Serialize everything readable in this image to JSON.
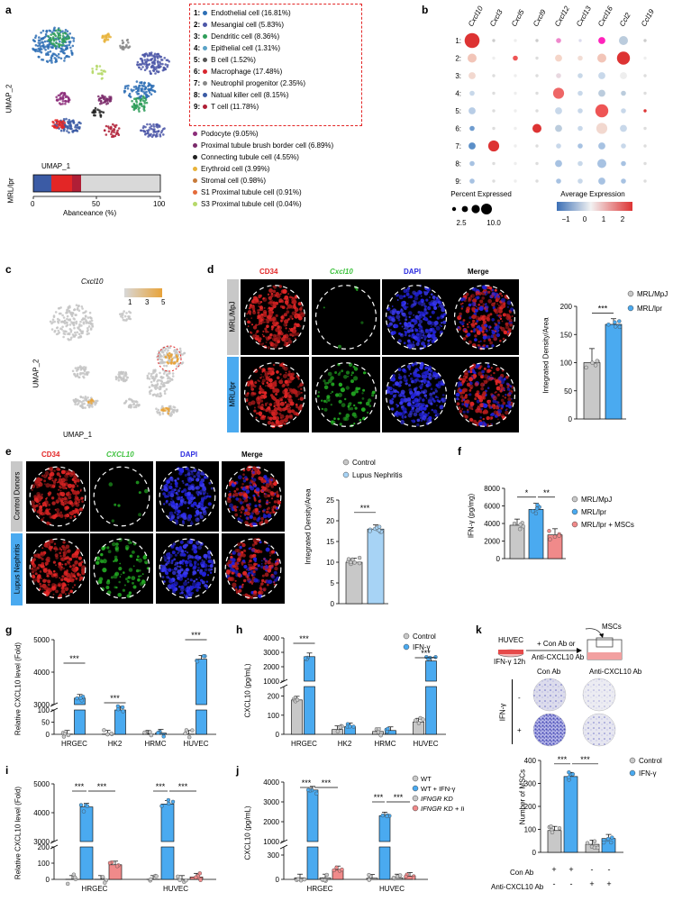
{
  "panels": {
    "a": {
      "letter": "a",
      "umap_xlabel": "UMAP_1",
      "umap_ylabel": "UMAP_2",
      "bar_ylabel": "MRL/lpr",
      "bar_xlabel": "Abanceance (%)",
      "bar_ticks": [
        "0",
        "50",
        "100"
      ],
      "boxed_legend": [
        {
          "num": "1:",
          "label": "Endothelial cell (16.81%)",
          "color": "#2e6fb5"
        },
        {
          "num": "2:",
          "label": "Mesangial cell (5.83%)",
          "color": "#4c57a8"
        },
        {
          "num": "3:",
          "label": "Dendritic cell (8.36%)",
          "color": "#2f9e5a"
        },
        {
          "num": "4:",
          "label": "Epithelial cell (1.31%)",
          "color": "#5aa3c7"
        },
        {
          "num": "5:",
          "label": "B cell (1.52%)",
          "color": "#555555"
        },
        {
          "num": "6:",
          "label": "Macrophage (17.48%)",
          "color": "#d8262f"
        },
        {
          "num": "7:",
          "label": "Neutrophil progenitor (2.35%)",
          "color": "#888888"
        },
        {
          "num": "8:",
          "label": "Natual killer cell (8.15%)",
          "color": "#3b5ba5"
        },
        {
          "num": "9:",
          "label": "T cell (11.78%)",
          "color": "#b01f36"
        }
      ],
      "other_legend": [
        {
          "label": "Podocyte (9.05%)",
          "color": "#8c2d7a"
        },
        {
          "label": "Proximal tubule brush border cell (6.89%)",
          "color": "#7b2b6b"
        },
        {
          "label": "Connecting tubule cell (4.55%)",
          "color": "#222222"
        },
        {
          "label": "Erythroid cell (3.99%)",
          "color": "#e8b33a"
        },
        {
          "label": "Stromal cell (0.98%)",
          "color": "#c77a3a"
        },
        {
          "label": "S1 Proximal tubule cell (0.91%)",
          "color": "#e46b3a"
        },
        {
          "label": "S3 Proximal tubule cell (0.04%)",
          "color": "#b6d96a"
        }
      ]
    },
    "b": {
      "letter": "b",
      "genes": [
        "Cxcl10",
        "Cxcl3",
        "Cxcl5",
        "Cxcl9",
        "Cxcl12",
        "Cxcl13",
        "Cxcl16",
        "Ccl2",
        "Ccl19"
      ],
      "rows": [
        "1:",
        "2:",
        "3:",
        "4:",
        "5:",
        "6:",
        "7:",
        "8:",
        "9:"
      ],
      "percent_title": "Percent Expressed",
      "percent_ticks": [
        "2.5",
        "10.0"
      ],
      "avg_title": "Average Expression",
      "avg_ticks": [
        "−1",
        "0",
        "1",
        "2"
      ]
    },
    "c": {
      "letter": "c",
      "title": "Cxcl10",
      "scale_ticks": [
        "1",
        "3",
        "5"
      ],
      "xlabel": "UMAP_1",
      "ylabel": "UMAP_2"
    },
    "d": {
      "letter": "d",
      "col_titles": [
        "CD34",
        "Cxcl10",
        "DAPI",
        "Merge"
      ],
      "row_labels": [
        "MRL/MpJ",
        "MRL/lpr"
      ],
      "ylabel": "Integrated Density/Area",
      "sig": "***",
      "legend": [
        "MRL/MpJ",
        "MRL/lpr"
      ]
    },
    "e": {
      "letter": "e",
      "col_titles": [
        "CD34",
        "CXCL10",
        "DAPI",
        "Merge"
      ],
      "row_labels": [
        "Control Donors",
        "Lupus Nephritis"
      ],
      "ylabel": "Integrated Density/Area",
      "sig": "***",
      "legend": [
        "Control",
        "Lupus Nephritis"
      ]
    },
    "f": {
      "letter": "f",
      "ylabel": "IFN-γ (pg/mg)",
      "yticks": [
        "0",
        "2000",
        "4000",
        "6000",
        "8000"
      ],
      "sig": [
        "*",
        "**"
      ],
      "legend": [
        "MRL/MpJ",
        "MRL/lpr",
        "MRL/lpr + MSCs"
      ]
    },
    "g": {
      "letter": "g",
      "ylabel": "Relative CXCL10 level (Fold)",
      "yticks_top": [
        "3000",
        "4000",
        "5000"
      ],
      "yticks_bottom": [
        "0",
        "50",
        "100"
      ],
      "categories": [
        "HRGEC",
        "HK2",
        "HRMC",
        "HUVEC"
      ],
      "sig": [
        "***",
        "***",
        "***"
      ]
    },
    "h": {
      "letter": "h",
      "ylabel": "CXCL10 (pg/mL)",
      "yticks_top": [
        "1000",
        "2000",
        "3000",
        "4000"
      ],
      "yticks_bottom": [
        "0",
        "100",
        "200"
      ],
      "categories": [
        "HRGEC",
        "HK2",
        "HRMC",
        "HUVEC"
      ],
      "sig": [
        "***",
        "***"
      ],
      "legend": [
        "Control",
        "IFN-γ"
      ]
    },
    "i": {
      "letter": "i",
      "ylabel": "Relative CXCL10 level (Fold)",
      "yticks_top": [
        "3000",
        "4000",
        "5000"
      ],
      "yticks_bottom": [
        "0",
        "100",
        "200"
      ],
      "categories": [
        "HRGEC",
        "HUVEC"
      ],
      "sig": [
        "***",
        "***",
        "***",
        "***"
      ]
    },
    "j": {
      "letter": "j",
      "ylabel": "CXCL10 (pg/mL)",
      "yticks_top": [
        "1000",
        "2000",
        "3000",
        "4000"
      ],
      "yticks_bottom": [
        "0",
        "300"
      ],
      "categories": [
        "HRGEC",
        "HUVEC"
      ],
      "sig": [
        "***",
        "***",
        "***",
        "***"
      ],
      "legend": [
        "WT",
        "WT + IFN-γ",
        "IFNGR KD",
        "IFNGR KD + IFN-γ"
      ]
    },
    "k": {
      "letter": "k",
      "huvec": "HUVEC",
      "ifn": "IFN-γ 12h",
      "treat1": "+ Con Ab or",
      "treat2": "Anti-CXCL10 Ab",
      "mscs": "MSCs",
      "col1": "Con Ab",
      "col2": "Anti-CXCL10 Ab",
      "ifn_side": "IFN-γ",
      "minus": "-",
      "plus": "+",
      "ylabel": "Number of MSCs",
      "yticks": [
        "0",
        "100",
        "200",
        "300",
        "400"
      ],
      "sig": [
        "***",
        "***"
      ],
      "legend": [
        "Control",
        "IFN-γ"
      ],
      "row1_label": "Con Ab",
      "row2_label": "Anti-CXCL10 Ab",
      "row1_vals": [
        "+",
        "+",
        "-",
        "-"
      ],
      "row2_vals": [
        "-",
        "-",
        "+",
        "+"
      ]
    }
  },
  "chart_data": [
    {
      "type": "bar",
      "panel": "d",
      "categories": [
        "MRL/MpJ",
        "MRL/lpr"
      ],
      "values": [
        100,
        168
      ],
      "ylim": [
        0,
        200
      ]
    },
    {
      "type": "bar",
      "panel": "e",
      "categories": [
        "Control",
        "Lupus Nephritis"
      ],
      "values": [
        10,
        18
      ],
      "ylim": [
        0,
        25
      ]
    },
    {
      "type": "bar",
      "panel": "f",
      "categories": [
        "MRL/MpJ",
        "MRL/lpr",
        "MRL/lpr + MSCs"
      ],
      "values": [
        3800,
        5600,
        2700
      ],
      "ylim": [
        0,
        8000
      ]
    },
    {
      "type": "bar",
      "panel": "g",
      "categories": [
        "HRGEC",
        "HK2",
        "HRMC",
        "HUVEC"
      ],
      "series": [
        {
          "name": "Control",
          "values": [
            1,
            1,
            1,
            1
          ]
        },
        {
          "name": "IFN-γ",
          "values": [
            3200,
            100,
            5,
            4400
          ]
        }
      ]
    },
    {
      "type": "bar",
      "panel": "h",
      "categories": [
        "HRGEC",
        "HK2",
        "HRMC",
        "HUVEC"
      ],
      "series": [
        {
          "name": "Control",
          "values": [
            180,
            25,
            15,
            65
          ]
        },
        {
          "name": "IFN-γ",
          "values": [
            2700,
            40,
            20,
            2400
          ]
        }
      ]
    },
    {
      "type": "bar",
      "panel": "i",
      "categories": [
        "HRGEC",
        "HUVEC"
      ],
      "series": [
        {
          "name": "WT",
          "values": [
            1,
            1
          ]
        },
        {
          "name": "WT + IFN-γ",
          "values": [
            4200,
            4300
          ]
        },
        {
          "name": "IFNGR KD",
          "values": [
            1,
            1
          ]
        },
        {
          "name": "IFNGR KD + IFN-γ",
          "values": [
            90,
            15
          ]
        }
      ]
    },
    {
      "type": "bar",
      "panel": "j",
      "categories": [
        "HRGEC",
        "HUVEC"
      ],
      "series": [
        {
          "name": "WT",
          "values": [
            20,
            15
          ]
        },
        {
          "name": "WT + IFN-γ",
          "values": [
            3600,
            2300
          ]
        },
        {
          "name": "IFNGR KD",
          "values": [
            20,
            20
          ]
        },
        {
          "name": "IFNGR KD + IFN-γ",
          "values": [
            120,
            40
          ]
        }
      ]
    },
    {
      "type": "bar",
      "panel": "k",
      "categories": [
        "Con Ab",
        "Anti-CXCL10 Ab"
      ],
      "series": [
        {
          "name": "Control",
          "values": [
            95,
            35
          ]
        },
        {
          "name": "IFN-γ",
          "values": [
            330,
            60
          ]
        }
      ],
      "ylim": [
        0,
        400
      ]
    }
  ],
  "colors": {
    "gray": "#c8c8c8",
    "blue": "#4aaaf0",
    "pink": "#f08a8a",
    "lightblue": "#a7d3f5",
    "red": "#e32626"
  }
}
